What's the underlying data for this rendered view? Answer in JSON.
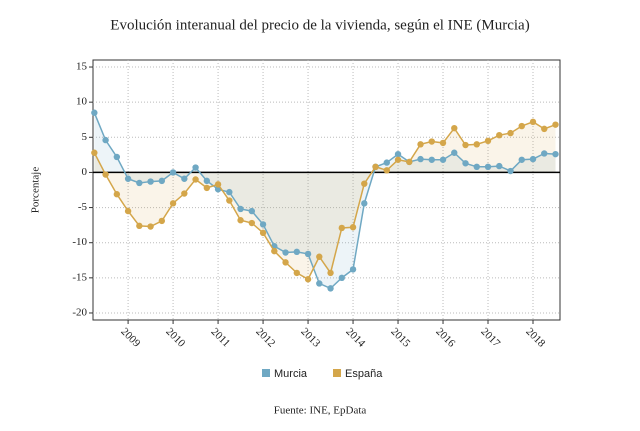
{
  "chart_data": {
    "type": "line",
    "title": "Evolución interanual del precio de la vivienda, según el INE (Murcia)",
    "y_label": "Porcentaje",
    "source": "Fuente: INE, EpData",
    "x": [
      2008.25,
      2008.5,
      2008.75,
      2009,
      2009.25,
      2009.5,
      2009.75,
      2010,
      2010.25,
      2010.5,
      2010.75,
      2011,
      2011.25,
      2011.5,
      2011.75,
      2012,
      2012.25,
      2012.5,
      2012.75,
      2013,
      2013.25,
      2013.5,
      2013.75,
      2014,
      2014.25,
      2014.5,
      2014.75,
      2015,
      2015.25,
      2015.5,
      2015.75,
      2016,
      2016.25,
      2016.5,
      2016.75,
      2017,
      2017.25,
      2017.5,
      2017.75,
      2018,
      2018.25,
      2018.5
    ],
    "series": [
      {
        "name": "Murcia",
        "color": "#6fa8c3",
        "values": [
          8.5,
          4.6,
          2.2,
          -0.9,
          -1.5,
          -1.3,
          -1.2,
          0.0,
          -0.9,
          0.7,
          -1.2,
          -2.4,
          -2.8,
          -5.2,
          -5.5,
          -7.4,
          -10.5,
          -11.4,
          -11.3,
          -11.6,
          -15.8,
          -16.5,
          -15.0,
          -13.8,
          -4.4,
          0.8,
          1.4,
          2.6,
          1.5,
          1.9,
          1.8,
          1.8,
          2.8,
          1.3,
          0.8,
          0.8,
          0.9,
          0.2,
          1.8,
          1.9,
          2.7,
          2.6
        ]
      },
      {
        "name": "España",
        "color": "#d4a64a",
        "values": [
          2.8,
          -0.3,
          -3.1,
          -5.5,
          -7.6,
          -7.7,
          -6.9,
          -4.4,
          -3.0,
          -1.0,
          -2.2,
          -1.7,
          -4.0,
          -6.8,
          -7.2,
          -8.6,
          -11.2,
          -12.8,
          -14.3,
          -15.2,
          -12.0,
          -14.3,
          -7.9,
          -7.8,
          -1.6,
          0.8,
          0.3,
          1.8,
          1.5,
          4.0,
          4.4,
          4.2,
          6.3,
          3.9,
          4.0,
          4.5,
          5.3,
          5.6,
          6.6,
          7.2,
          6.2,
          6.8
        ]
      }
    ],
    "xlim": [
      2008.22,
      2018.6
    ],
    "xticks": [
      2009,
      2010,
      2011,
      2012,
      2013,
      2014,
      2015,
      2016,
      2017,
      2018
    ],
    "ylim": [
      -21,
      16
    ],
    "yticks": [
      -20,
      -15,
      -10,
      -5,
      0,
      5,
      10,
      15
    ],
    "grid": true,
    "legend": "bottom"
  }
}
